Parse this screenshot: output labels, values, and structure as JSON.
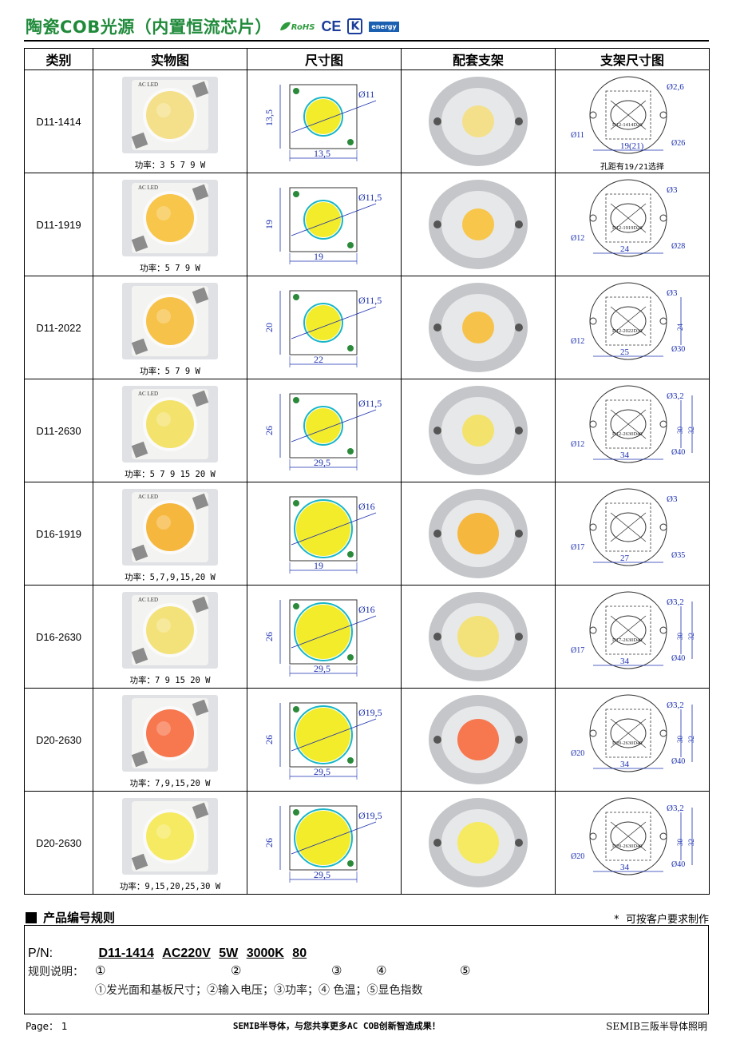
{
  "header": {
    "title": "陶瓷COB光源（内置恒流芯片）",
    "certs": {
      "rohs": "RoHS",
      "ce": "CE",
      "kc": "K",
      "energy": "energy"
    }
  },
  "table": {
    "columns": [
      "类别",
      "实物图",
      "尺寸图",
      "配套支架",
      "支架尺寸图"
    ],
    "rows": [
      {
        "model": "D11-1414",
        "power": "功率：3 5 7 9 W",
        "chip_color": "#f4e08a",
        "chip_label": "AC LED",
        "dims": {
          "w": "13,5",
          "h": "13,5",
          "d": "Ø11"
        },
        "bracket": {
          "label": "D12-1414D26",
          "hole": "Ø2,6",
          "inner": "Ø11",
          "outer": "Ø26",
          "span": "19(21)"
        },
        "bracket_note": "孔距有19/21选择"
      },
      {
        "model": "D11-1919",
        "power": "功率：5 7 9 W",
        "chip_color": "#f7c64a",
        "chip_label": "AC LED",
        "dims": {
          "w": "19",
          "h": "19",
          "d": "Ø11,5"
        },
        "bracket": {
          "label": "D12-1919D28",
          "hole": "Ø3",
          "inner": "Ø12",
          "outer": "Ø28",
          "span": "24"
        },
        "bracket_note": ""
      },
      {
        "model": "D11-2022",
        "power": "功率：5 7 9 W",
        "chip_color": "#f6c24a",
        "chip_label": "",
        "dims": {
          "w": "22",
          "h": "20",
          "d": "Ø11,5"
        },
        "bracket": {
          "label": "D12-2022D30",
          "hole": "Ø3",
          "inner": "Ø12",
          "outer": "Ø30",
          "span": "25",
          "side": "24"
        },
        "bracket_note": ""
      },
      {
        "model": "D11-2630",
        "power": "功率：5 7 9 15 20 W",
        "chip_color": "#f3e26c",
        "chip_label": "AC LED",
        "dims": {
          "w": "29,5",
          "h": "26",
          "d": "Ø11,5"
        },
        "bracket": {
          "label": "D12-2630D40",
          "hole": "Ø3,2",
          "inner": "Ø12",
          "outer": "Ø40",
          "span": "34",
          "side": "30",
          "side2": "32"
        },
        "bracket_note": ""
      },
      {
        "model": "D16-1919",
        "power": "功率：5,7,9,15,20 W",
        "chip_color": "#f6b73e",
        "chip_label": "AC LED",
        "dims": {
          "w": "19",
          "h": "",
          "d": "Ø16"
        },
        "bracket": {
          "label": "",
          "hole": "Ø3",
          "inner": "Ø17",
          "outer": "Ø35",
          "span": "27"
        },
        "bracket_note": ""
      },
      {
        "model": "D16-2630",
        "power": "功率：7 9 15 20 W",
        "chip_color": "#f3e27a",
        "chip_label": "AC LED",
        "dims": {
          "w": "29,5",
          "h": "26",
          "d": "Ø16"
        },
        "bracket": {
          "label": "D17-2630D40",
          "hole": "Ø3,2",
          "inner": "Ø17",
          "outer": "Ø40",
          "span": "34",
          "side": "30",
          "side2": "32"
        },
        "bracket_note": ""
      },
      {
        "model": "D20-2630",
        "power": "功率：7,9,15,20 W",
        "chip_color": "#f7774e",
        "chip_label": "",
        "dims": {
          "w": "29,5",
          "h": "26",
          "d": "Ø19,5"
        },
        "bracket": {
          "label": "D20-2630D40",
          "hole": "Ø3,2",
          "inner": "Ø20",
          "outer": "Ø40",
          "span": "34",
          "side": "30",
          "side2": "32"
        },
        "bracket_note": ""
      },
      {
        "model": "D20-2630",
        "power": "功率：9,15,20,25,30 W",
        "chip_color": "#f6ea62",
        "chip_label": "",
        "dims": {
          "w": "29,5",
          "h": "26",
          "d": "Ø19,5"
        },
        "bracket": {
          "label": "D20-2630D40",
          "hole": "Ø3,2",
          "inner": "Ø20",
          "outer": "Ø40",
          "span": "34",
          "side": "30",
          "side2": "32"
        },
        "bracket_note": ""
      }
    ]
  },
  "rules": {
    "title": "产品编号规则",
    "note": "* 可按客户要求制作",
    "pn_label": "P/N:",
    "pn_segments": [
      "D11-1414",
      "AC220V",
      "5W",
      "3000K",
      "80"
    ],
    "desc_label": "规则说明：",
    "marks": [
      "①",
      "②",
      "③",
      "④",
      "⑤"
    ],
    "desc": "①发光面和基板尺寸；②输入电压；③功率；④ 色温；⑤显色指数"
  },
  "footer": {
    "page": "Page： 1",
    "slogan": "SEMIB半导体，与您共享更多AC COB创新智造成果！",
    "brand": "SEMIB三阪半导体照明"
  }
}
